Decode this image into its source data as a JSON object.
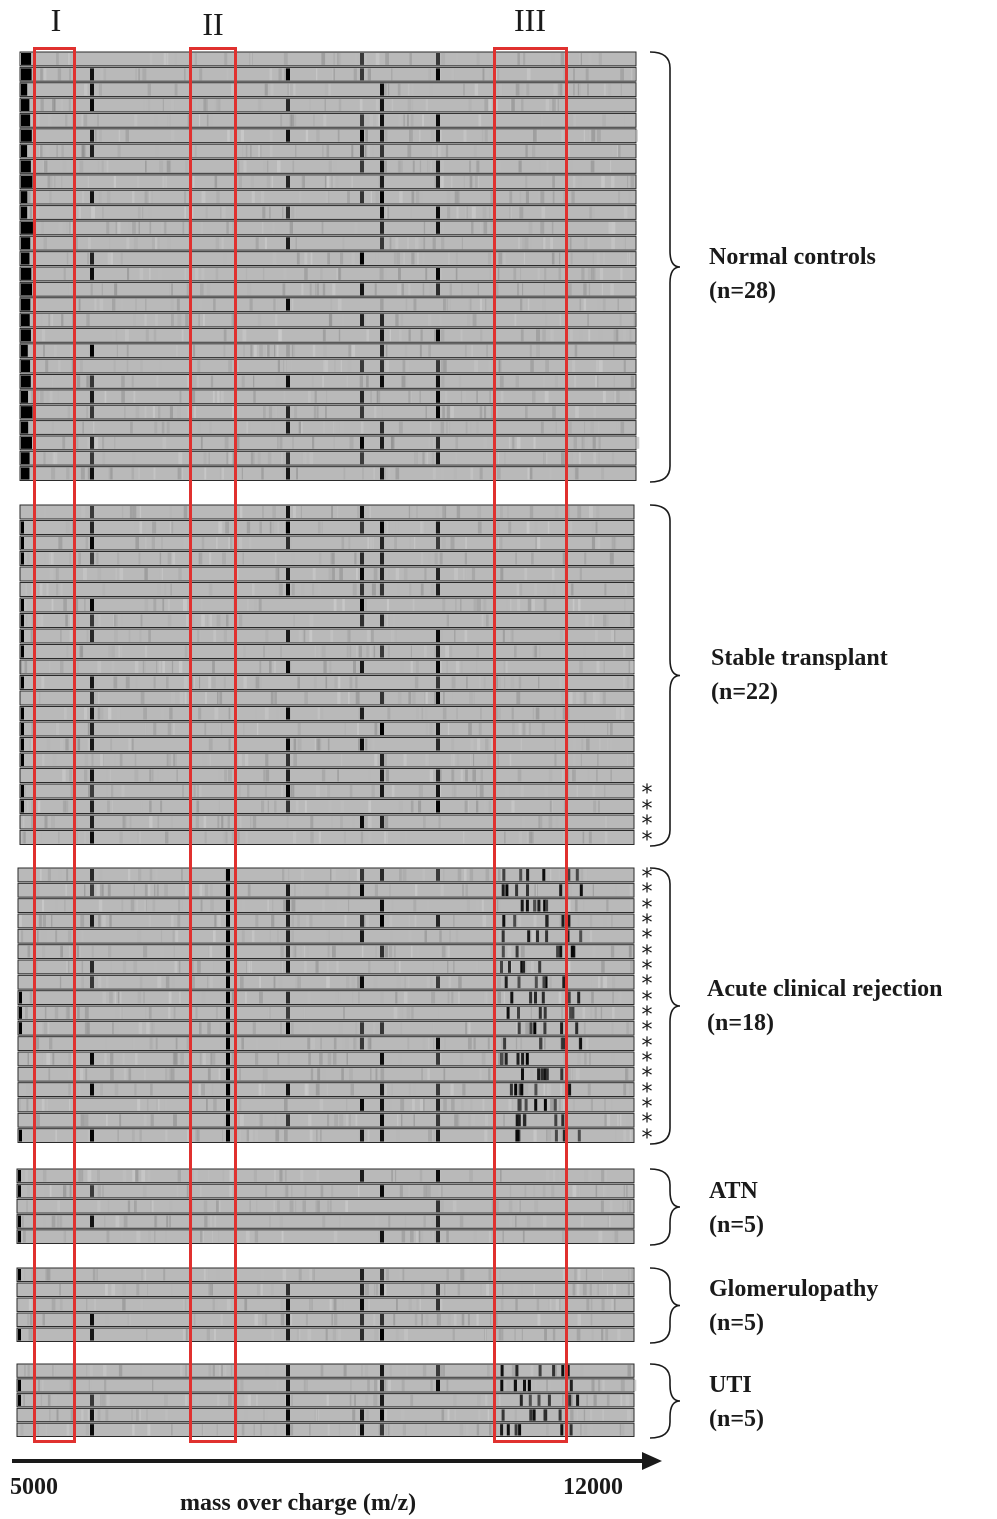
{
  "figure": {
    "regions": [
      {
        "label": "I"
      },
      {
        "label": "II"
      },
      {
        "label": "III"
      }
    ],
    "groups": [
      {
        "name": "Normal controls",
        "n_label": "(n=28)",
        "lanes": 28,
        "starred_lanes": 0
      },
      {
        "name": "Stable transplant",
        "n_label": "(n=22)",
        "lanes": 22,
        "starred_lanes": 4
      },
      {
        "name": "Acute clinical rejection",
        "n_label": "(n=18)",
        "lanes": 18,
        "starred_lanes": 18
      },
      {
        "name": "ATN",
        "n_label": "(n=5)",
        "lanes": 5,
        "starred_lanes": 0
      },
      {
        "name": "Glomerulopathy",
        "n_label": "(n=5)",
        "lanes": 5,
        "starred_lanes": 0
      },
      {
        "name": "UTI",
        "n_label": "(n=5)",
        "lanes": 5,
        "starred_lanes": 0
      }
    ],
    "axis": {
      "start_label": "5000",
      "end_label": "12000",
      "title": "mass over charge (m/z)"
    },
    "colors": {
      "region_box": "#e0312f",
      "lane_background": "#b9b9b9",
      "band_dark": "#000000",
      "lane_border": "#2a2a2a"
    }
  }
}
